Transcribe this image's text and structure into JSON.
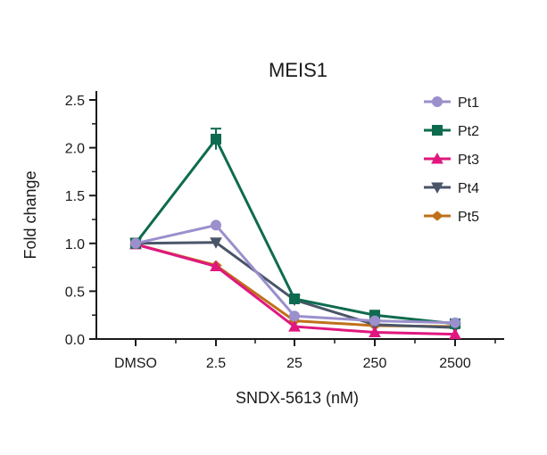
{
  "chart_data": {
    "type": "line",
    "title": "MEIS1",
    "xlabel": "SNDX-5613 (nM)",
    "ylabel": "Fold change",
    "categories": [
      "DMSO",
      "2.5",
      "25",
      "250",
      "2500"
    ],
    "ylim": [
      0,
      2.5
    ],
    "yticks": [
      "0.0",
      "0.5",
      "1.0",
      "1.5",
      "2.0",
      "2.5"
    ],
    "grid": false,
    "legend_position": "top-right",
    "series": [
      {
        "name": "Pt1",
        "color": "#9b8fcc",
        "marker": "circle",
        "values": [
          1.0,
          1.19,
          0.24,
          0.19,
          0.17
        ]
      },
      {
        "name": "Pt2",
        "color": "#0e6b4f",
        "marker": "square",
        "values": [
          1.0,
          2.09,
          0.42,
          0.25,
          0.16
        ],
        "error": [
          0.05,
          0.11,
          0.03,
          0.02,
          0.01
        ]
      },
      {
        "name": "Pt3",
        "color": "#e0177f",
        "marker": "triangle-up",
        "values": [
          0.99,
          0.76,
          0.13,
          0.07,
          0.05
        ]
      },
      {
        "name": "Pt4",
        "color": "#4a5568",
        "marker": "triangle-down",
        "values": [
          1.0,
          1.01,
          0.41,
          0.15,
          0.12
        ]
      },
      {
        "name": "Pt5",
        "color": "#c0701a",
        "marker": "diamond",
        "values": [
          0.99,
          0.77,
          0.19,
          0.14,
          0.13
        ]
      }
    ]
  }
}
